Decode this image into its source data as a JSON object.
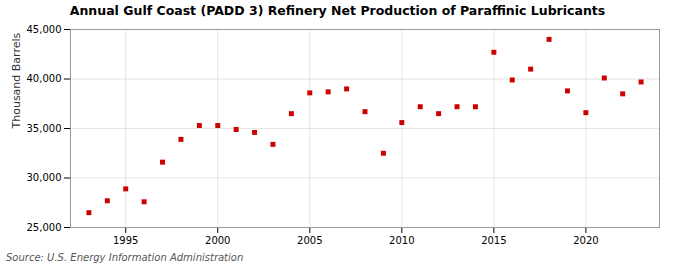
{
  "chart_data": {
    "type": "scatter",
    "title": "Annual Gulf Coast (PADD 3) Refinery Net Production of Paraffinic Lubricants",
    "ylabel": "Thousand Barrels",
    "source": "Source: U.S. Energy Information Administration",
    "x": [
      1993,
      1994,
      1995,
      1996,
      1997,
      1998,
      1999,
      2000,
      2001,
      2002,
      2003,
      2004,
      2005,
      2006,
      2007,
      2008,
      2009,
      2010,
      2011,
      2012,
      2013,
      2014,
      2015,
      2016,
      2017,
      2018,
      2019,
      2020,
      2021,
      2022,
      2023
    ],
    "values": [
      26500,
      27700,
      28900,
      27600,
      31600,
      33900,
      35300,
      35300,
      34900,
      34600,
      33400,
      36500,
      38600,
      38700,
      39000,
      36700,
      32500,
      35600,
      37200,
      36500,
      37200,
      37200,
      42700,
      39900,
      41000,
      44000,
      38800,
      36600,
      40100,
      38500,
      39700
    ],
    "color": "#cc0000",
    "marker": "square",
    "xlim": [
      1992,
      2024
    ],
    "xticks": [
      1995,
      2000,
      2005,
      2010,
      2015,
      2020
    ],
    "ylim": [
      25000,
      45000
    ],
    "yticks": [
      {
        "value": 25000,
        "label": "25,000"
      },
      {
        "value": 30000,
        "label": "30,000"
      },
      {
        "value": 35000,
        "label": "35,000"
      },
      {
        "value": 40000,
        "label": "40,000"
      },
      {
        "value": 45000,
        "label": "45,000"
      }
    ],
    "grid": true
  }
}
